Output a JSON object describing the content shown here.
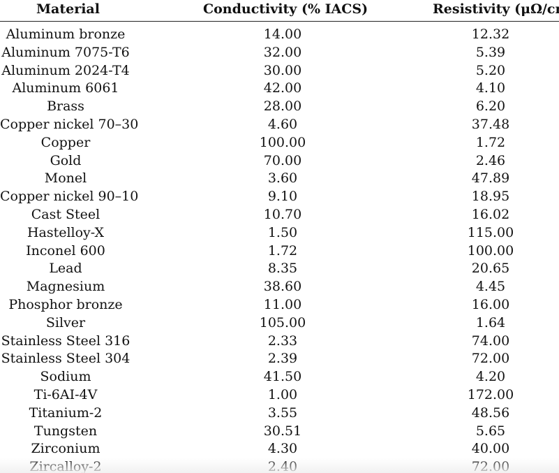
{
  "table": {
    "headers": {
      "material": "Material",
      "conductivity": "Conductivity (% IACS)",
      "resistivity": "Resistivity (μΩ/cm)"
    },
    "rows": [
      {
        "material": "Aluminum bronze",
        "conductivity": "14.00",
        "resistivity": "12.32"
      },
      {
        "material": "Aluminum 7075-T6",
        "conductivity": "32.00",
        "resistivity": "5.39"
      },
      {
        "material": "Aluminum 2024-T4",
        "conductivity": "30.00",
        "resistivity": "5.20"
      },
      {
        "material": "Aluminum 6061",
        "conductivity": "42.00",
        "resistivity": "4.10"
      },
      {
        "material": "Brass",
        "conductivity": "28.00",
        "resistivity": "6.20"
      },
      {
        "material": "Copper nickel 70–30",
        "conductivity": "4.60",
        "resistivity": "37.48"
      },
      {
        "material": "Copper",
        "conductivity": "100.00",
        "resistivity": "1.72"
      },
      {
        "material": "Gold",
        "conductivity": "70.00",
        "resistivity": "2.46"
      },
      {
        "material": "Monel",
        "conductivity": "3.60",
        "resistivity": "47.89"
      },
      {
        "material": "Copper nickel 90–10",
        "conductivity": "9.10",
        "resistivity": "18.95"
      },
      {
        "material": "Cast Steel",
        "conductivity": "10.70",
        "resistivity": "16.02"
      },
      {
        "material": "Hastelloy-X",
        "conductivity": "1.50",
        "resistivity": "115.00"
      },
      {
        "material": "Inconel 600",
        "conductivity": "1.72",
        "resistivity": "100.00"
      },
      {
        "material": "Lead",
        "conductivity": "8.35",
        "resistivity": "20.65"
      },
      {
        "material": "Magnesium",
        "conductivity": "38.60",
        "resistivity": "4.45"
      },
      {
        "material": "Phosphor bronze",
        "conductivity": "11.00",
        "resistivity": "16.00"
      },
      {
        "material": "Silver",
        "conductivity": "105.00",
        "resistivity": "1.64"
      },
      {
        "material": "Stainless Steel 316",
        "conductivity": "2.33",
        "resistivity": "74.00"
      },
      {
        "material": "Stainless Steel 304",
        "conductivity": "2.39",
        "resistivity": "72.00"
      },
      {
        "material": "Sodium",
        "conductivity": "41.50",
        "resistivity": "4.20"
      },
      {
        "material": "Ti-6AI-4V",
        "conductivity": "1.00",
        "resistivity": "172.00"
      },
      {
        "material": "Titanium-2",
        "conductivity": "3.55",
        "resistivity": "48.56"
      },
      {
        "material": "Tungsten",
        "conductivity": "30.51",
        "resistivity": "5.65"
      },
      {
        "material": "Zirconium",
        "conductivity": "4.30",
        "resistivity": "40.00"
      },
      {
        "material": "Zircalloy-2",
        "conductivity": "2.40",
        "resistivity": "72.00"
      }
    ]
  }
}
